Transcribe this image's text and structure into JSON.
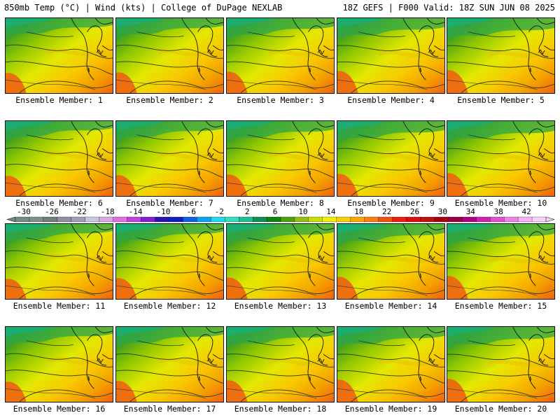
{
  "header": {
    "left": "850mb Temp (°C) | Wind (kts) | College of DuPage NEXLAB",
    "right": "18Z GEFS | F000 Valid: 18Z SUN JUN 08 2025"
  },
  "members": [
    "Ensemble Member: 1",
    "Ensemble Member: 2",
    "Ensemble Member: 3",
    "Ensemble Member: 4",
    "Ensemble Member: 5",
    "Ensemble Member: 6",
    "Ensemble Member: 7",
    "Ensemble Member: 8",
    "Ensemble Member: 9",
    "Ensemble Member: 10",
    "Ensemble Member: 11",
    "Ensemble Member: 12",
    "Ensemble Member: 13",
    "Ensemble Member: 14",
    "Ensemble Member: 15",
    "Ensemble Member: 16",
    "Ensemble Member: 17",
    "Ensemble Member: 18",
    "Ensemble Member: 19",
    "Ensemble Member: 20"
  ],
  "colorbar": {
    "labels": [
      "-30",
      "-26",
      "-22",
      "-18",
      "-14",
      "-10",
      "-6",
      "-2",
      "2",
      "6",
      "10",
      "14",
      "18",
      "22",
      "26",
      "30",
      "34",
      "38",
      "42"
    ],
    "colors": [
      "#6f8f7f",
      "#7f8f8f",
      "#6f7f7f",
      "#8f8f9f",
      "#9fa0b8",
      "#c8c8e0",
      "#d8a8e0",
      "#e070e0",
      "#c040e0",
      "#8020d0",
      "#3010b0",
      "#1020c0",
      "#1060e0",
      "#10a0f0",
      "#20d8f0",
      "#30e0c0",
      "#20c090",
      "#109050",
      "#108010",
      "#50a010",
      "#90c010",
      "#c8e000",
      "#f0f000",
      "#f8d000",
      "#f8a800",
      "#f88010",
      "#f05010",
      "#e82010",
      "#d81010",
      "#c01010",
      "#a00010",
      "#980040",
      "#b00080",
      "#d020b0",
      "#e050d0",
      "#f080e8",
      "#f8b0f8",
      "#f8d0f8"
    ]
  }
}
